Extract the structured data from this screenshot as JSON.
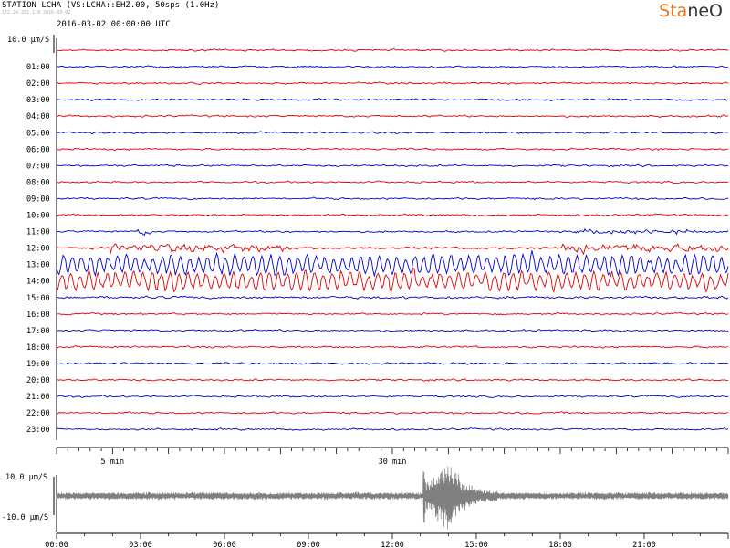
{
  "header": {
    "station": "STATION LCHA (VS:LCHA::EHZ.00, 50sps (1.0Hz)",
    "network_note": "172.24.251.119 2016-03-02",
    "start_time": "2016-03-02 00:00:00 UTC",
    "logo_part1": "Sta",
    "logo_part2": "neO"
  },
  "colors": {
    "even_trace": "#e00000",
    "odd_trace": "#0000d0",
    "summary_trace": "#808080",
    "logo_accent": "#e8761f"
  },
  "chart_data": [
    {
      "type": "line",
      "title": "STATION LCHA (VS:LCHA::EHZ.00, 50sps (1.0Hz)",
      "subtitle": "2016-03-02 00:00:00 UTC",
      "scale_label": "10.0 μm/S",
      "row_labels": [
        "01:00",
        "02:00",
        "03:00",
        "04:00",
        "05:00",
        "06:00",
        "07:00",
        "08:00",
        "09:00",
        "10:00",
        "11:00",
        "12:00",
        "13:00",
        "14:00",
        "15:00",
        "16:00",
        "17:00",
        "18:00",
        "19:00",
        "20:00",
        "21:00",
        "22:00",
        "23:00"
      ],
      "rows": 24,
      "minutes_per_row": 60,
      "x_tick_labels": [
        {
          "minute": 5,
          "label": "5 min"
        },
        {
          "minute": 30,
          "label": "30 min"
        }
      ],
      "row_amplitudes": [
        1,
        1,
        1,
        1,
        1,
        1,
        1,
        1,
        1,
        1,
        1,
        1,
        1.2,
        3.2,
        3.0,
        1.3,
        1,
        1,
        1,
        1,
        1,
        1,
        1,
        1
      ]
    },
    {
      "type": "area",
      "xlabel": "",
      "ylabel": "",
      "y_labels": [
        "10.0 μm/S",
        "-10.0 μm/S"
      ],
      "x_tick_labels": [
        "00:00",
        "03:00",
        "06:00",
        "09:00",
        "12:00",
        "15:00",
        "18:00",
        "21:00"
      ],
      "xlim": [
        0,
        24
      ],
      "event_onset_hour": 13.1,
      "event_peak_hour": 14.0,
      "event_decay_end_hour": 15.8
    }
  ]
}
